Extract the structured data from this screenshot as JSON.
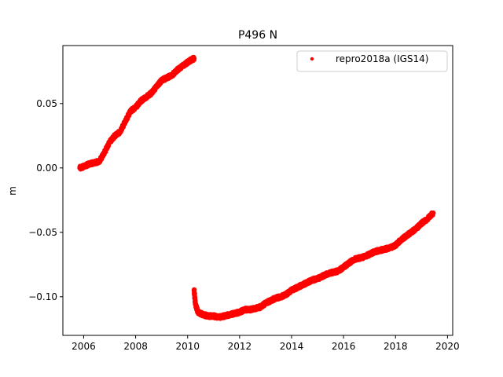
{
  "chart_data": {
    "type": "scatter",
    "title": "P496 N",
    "xlabel": "",
    "ylabel": "m",
    "xlim": [
      2005.2,
      2020.2
    ],
    "ylim": [
      -0.13,
      0.095
    ],
    "xticks": [
      2006,
      2008,
      2010,
      2012,
      2014,
      2016,
      2018,
      2020
    ],
    "xtick_labels": [
      "2006",
      "2008",
      "2010",
      "2012",
      "2014",
      "2016",
      "2018",
      "2020"
    ],
    "yticks": [
      0.05,
      0.0,
      -0.05,
      -0.1
    ],
    "ytick_labels": [
      "0.05",
      "0.00",
      "−0.05",
      "−0.10"
    ],
    "grid": false,
    "legend_position": "top-right",
    "series": [
      {
        "name": "repro2018a (IGS14)",
        "color": "#ff0000",
        "marker": "point",
        "segments": [
          {
            "x": [
              2005.85,
              2006.0,
              2006.2,
              2006.4,
              2006.6,
              2006.8,
              2007.0,
              2007.2,
              2007.4,
              2007.6,
              2007.8,
              2008.0,
              2008.2,
              2008.4,
              2008.6,
              2008.8,
              2009.0,
              2009.2,
              2009.4,
              2009.6,
              2009.8,
              2010.0,
              2010.15,
              2010.25
            ],
            "y": [
              0.0,
              0.001,
              0.003,
              0.004,
              0.005,
              0.012,
              0.02,
              0.025,
              0.028,
              0.036,
              0.044,
              0.047,
              0.052,
              0.055,
              0.058,
              0.063,
              0.068,
              0.07,
              0.072,
              0.076,
              0.079,
              0.082,
              0.084,
              0.085
            ]
          },
          {
            "x": [
              2010.25,
              2010.3,
              2010.4,
              2010.6,
              2010.8,
              2011.0,
              2011.2,
              2011.4,
              2011.6,
              2011.8,
              2012.0,
              2012.2,
              2012.4,
              2012.6,
              2012.8,
              2013.0,
              2013.2,
              2013.4,
              2013.6,
              2013.8,
              2014.0,
              2014.2,
              2014.4,
              2014.6,
              2014.8,
              2015.0,
              2015.2,
              2015.4,
              2015.6,
              2015.8,
              2016.0,
              2016.2,
              2016.4,
              2016.6,
              2016.8,
              2017.0,
              2017.2,
              2017.4,
              2017.6,
              2017.8,
              2018.0,
              2018.2,
              2018.4,
              2018.6,
              2018.8,
              2019.0,
              2019.2,
              2019.45
            ],
            "y": [
              -0.095,
              -0.106,
              -0.112,
              -0.114,
              -0.115,
              -0.115,
              -0.116,
              -0.115,
              -0.114,
              -0.113,
              -0.112,
              -0.11,
              -0.11,
              -0.109,
              -0.108,
              -0.105,
              -0.103,
              -0.101,
              -0.1,
              -0.098,
              -0.095,
              -0.093,
              -0.091,
              -0.089,
              -0.087,
              -0.086,
              -0.084,
              -0.082,
              -0.081,
              -0.08,
              -0.077,
              -0.074,
              -0.071,
              -0.07,
              -0.069,
              -0.067,
              -0.065,
              -0.064,
              -0.063,
              -0.062,
              -0.06,
              -0.056,
              -0.053,
              -0.05,
              -0.047,
              -0.043,
              -0.04,
              -0.035
            ]
          }
        ]
      }
    ]
  }
}
